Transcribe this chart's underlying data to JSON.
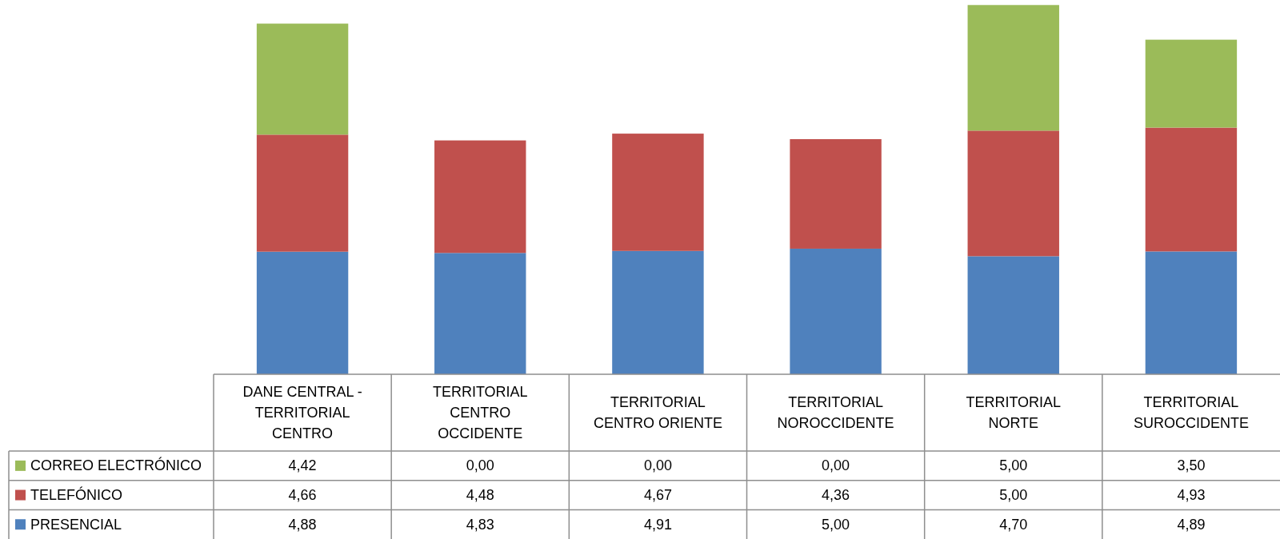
{
  "chart_data": {
    "type": "bar",
    "stacked": true,
    "categories": [
      "DANE CENTRAL - TERRITORIAL CENTRO",
      "TERRITORIAL CENTRO OCCIDENTE",
      "TERRITORIAL CENTRO ORIENTE",
      "TERRITORIAL NOROCCIDENTE",
      "TERRITORIAL NORTE",
      "TERRITORIAL SUROCCIDENTE"
    ],
    "series": [
      {
        "name": "PRESENCIAL",
        "color": "#4f81bd",
        "values": [
          4.88,
          4.83,
          4.91,
          5.0,
          4.7,
          4.89
        ],
        "value_labels": [
          "4,88",
          "4,83",
          "4,91",
          "5,00",
          "4,70",
          "4,89"
        ]
      },
      {
        "name": "TELEFÓNICO",
        "color": "#c0504d",
        "values": [
          4.66,
          4.48,
          4.67,
          4.36,
          5.0,
          4.93
        ],
        "value_labels": [
          "4,66",
          "4,48",
          "4,67",
          "4,36",
          "5,00",
          "4,93"
        ]
      },
      {
        "name": "CORREO ELECTRÓNICO",
        "color": "#9bbb59",
        "values": [
          4.42,
          0.0,
          0.0,
          0.0,
          5.0,
          3.5
        ],
        "value_labels": [
          "4,42",
          "0,00",
          "0,00",
          "0,00",
          "5,00",
          "3,50"
        ]
      }
    ],
    "ylim": [
      0,
      14.9
    ],
    "legend": "bottom left",
    "tick_labels": "x"
  }
}
